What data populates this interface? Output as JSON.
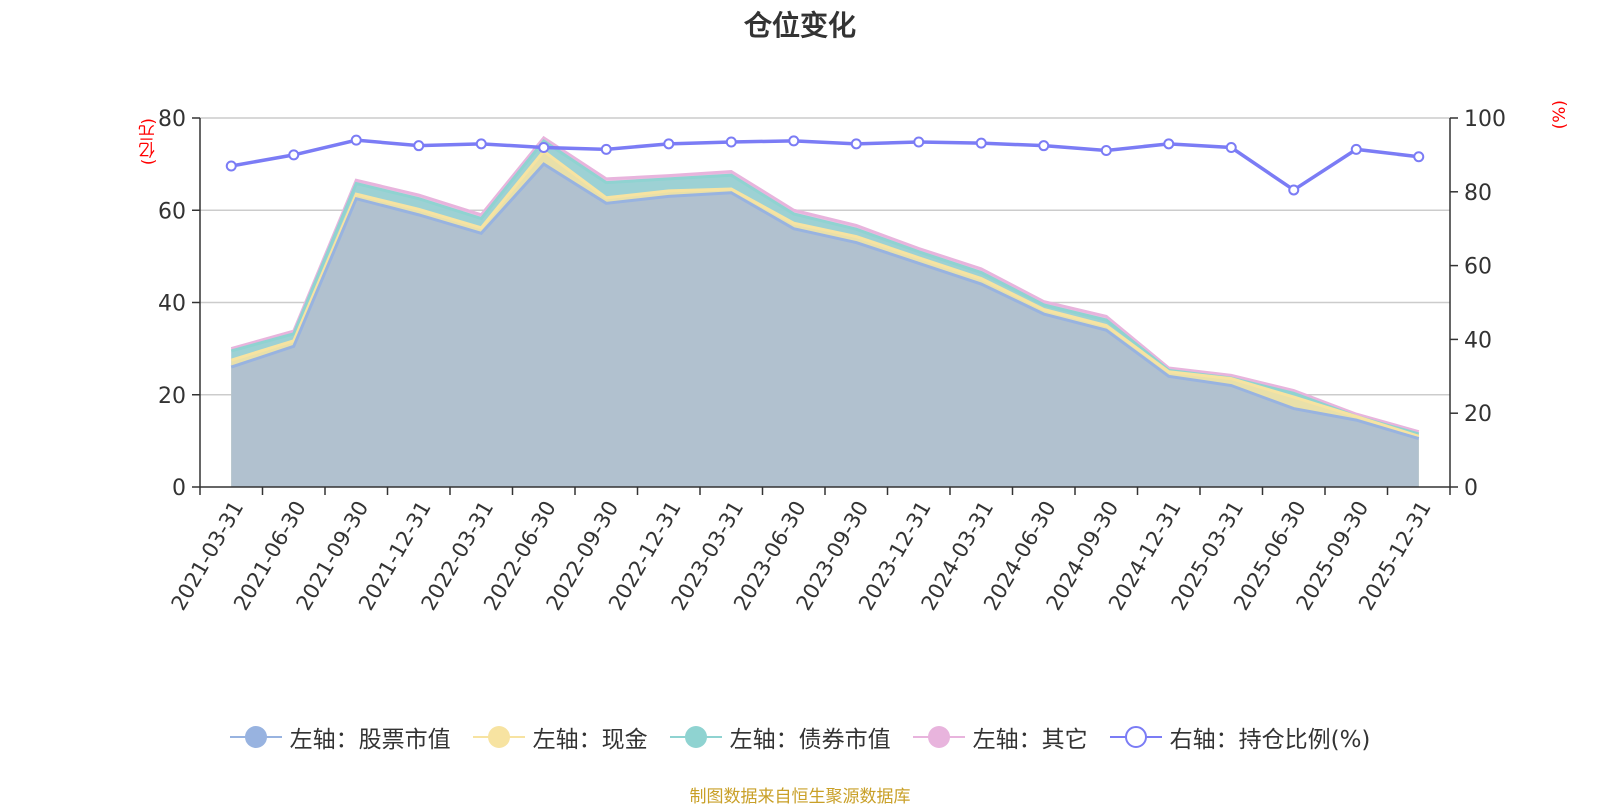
{
  "title": "仓位变化",
  "source": "制图数据来自恒生聚源数据库",
  "axis": {
    "left_unit": "(亿元)",
    "right_unit": "(%)"
  },
  "legend": [
    {
      "label": "左轴：股票市值",
      "color": "#98b3e0",
      "hollow": false
    },
    {
      "label": "左轴：现金",
      "color": "#f7e3a1",
      "hollow": false
    },
    {
      "label": "左轴：债券市值",
      "color": "#8fd3d1",
      "hollow": false
    },
    {
      "label": "左轴：其它",
      "color": "#e8b4dd",
      "hollow": false
    },
    {
      "label": "右轴：持仓比例(%)",
      "color": "#7b7cf5",
      "hollow": true
    }
  ],
  "chart_data": {
    "type": "area",
    "stacked": true,
    "categories": [
      "2021-03-31",
      "2021-06-30",
      "2021-09-30",
      "2021-12-31",
      "2022-03-31",
      "2022-06-30",
      "2022-09-30",
      "2022-12-31",
      "2023-03-31",
      "2023-06-30",
      "2023-09-30",
      "2023-12-31",
      "2024-03-31",
      "2024-06-30",
      "2024-09-30",
      "2024-12-31",
      "2025-03-31",
      "2025-06-30",
      "2025-09-30",
      "2025-12-31"
    ],
    "left_axis": {
      "range": [
        0,
        80
      ],
      "ticks": [
        0,
        20,
        40,
        60,
        80
      ]
    },
    "right_axis": {
      "range": [
        0,
        100
      ],
      "ticks": [
        0,
        20,
        40,
        60,
        80,
        100
      ]
    },
    "grid": true,
    "legend_position": "bottom",
    "series": [
      {
        "name": "左轴：股票市值",
        "axis": "left",
        "color": "#98b3e0",
        "values": [
          26.0,
          30.5,
          62.5,
          59.0,
          55.0,
          70.0,
          61.5,
          63.0,
          63.8,
          56.0,
          53.0,
          48.5,
          44.0,
          37.5,
          34.0,
          24.0,
          22.0,
          17.0,
          14.5,
          10.5
        ]
      },
      {
        "name": "左轴：现金",
        "axis": "left",
        "color": "#f7e3a1",
        "values": [
          1.5,
          1.2,
          1.0,
          1.2,
          1.2,
          2.8,
          1.2,
          1.2,
          0.8,
          1.2,
          1.3,
          1.2,
          1.2,
          1.0,
          1.0,
          1.0,
          1.5,
          2.5,
          0.8,
          0.5
        ]
      },
      {
        "name": "左轴：债券市值",
        "axis": "left",
        "color": "#8fd3d1",
        "values": [
          2.0,
          1.5,
          2.3,
          2.3,
          2.0,
          2.2,
          3.3,
          2.6,
          3.0,
          2.0,
          1.6,
          1.3,
          1.3,
          1.0,
          1.2,
          0.3,
          0.1,
          0.8,
          0.0,
          0.5
        ]
      },
      {
        "name": "左轴：其它",
        "axis": "left",
        "color": "#e8b4dd",
        "values": [
          0.5,
          0.6,
          0.7,
          0.8,
          0.8,
          0.7,
          0.8,
          0.7,
          0.8,
          0.8,
          0.8,
          0.7,
          0.8,
          0.7,
          0.8,
          0.5,
          0.6,
          0.6,
          0.5,
          0.5
        ]
      },
      {
        "name": "右轴：持仓比例(%)",
        "axis": "right",
        "color": "#7b7cf5",
        "type": "line",
        "values": [
          87.0,
          90.0,
          94.0,
          92.5,
          93.0,
          92.0,
          91.5,
          93.0,
          93.5,
          93.8,
          93.0,
          93.5,
          93.2,
          92.5,
          91.2,
          93.0,
          92.0,
          80.5,
          91.5,
          89.5
        ]
      }
    ]
  }
}
